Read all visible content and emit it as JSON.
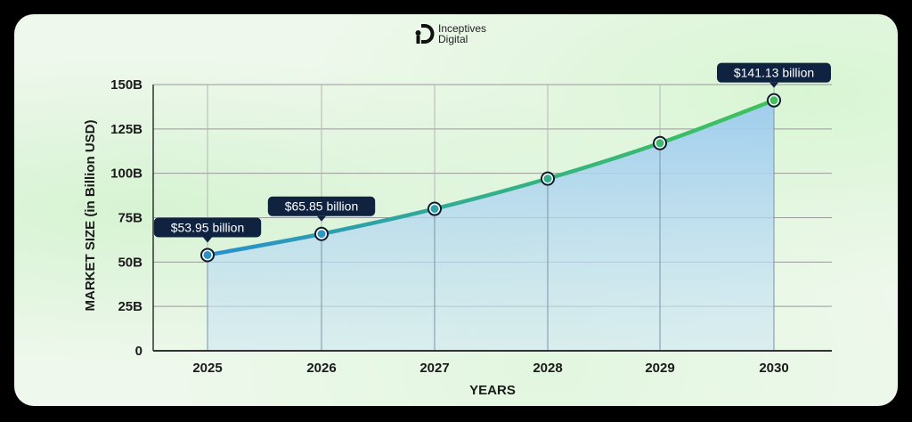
{
  "brand": {
    "line1": "Inceptives",
    "line2": "Digital"
  },
  "chart_data": {
    "type": "area",
    "title": "",
    "xlabel": "YEARS",
    "ylabel": "MARKET SIZE (in Billion USD)",
    "categories": [
      "2025",
      "2026",
      "2027",
      "2028",
      "2029",
      "2030"
    ],
    "values": [
      53.95,
      65.85,
      80,
      97,
      117,
      141.13
    ],
    "ylim": [
      0,
      150
    ],
    "y_ticks": [
      "0",
      "25B",
      "50B",
      "75B",
      "100B",
      "125B",
      "150B"
    ],
    "grid": true,
    "legend": null,
    "annotations": [
      {
        "x": "2025",
        "label": "$53.95 billion"
      },
      {
        "x": "2026",
        "label": "$65.85 billion"
      },
      {
        "x": "2030",
        "label": "$141.13 billion"
      }
    ],
    "colors": {
      "line_start": "#2a8fd0",
      "line_end": "#3fc25a",
      "fill": "#a9d2ef",
      "callout_bg": "#0f2340",
      "grid": "#9a9a9a"
    }
  }
}
